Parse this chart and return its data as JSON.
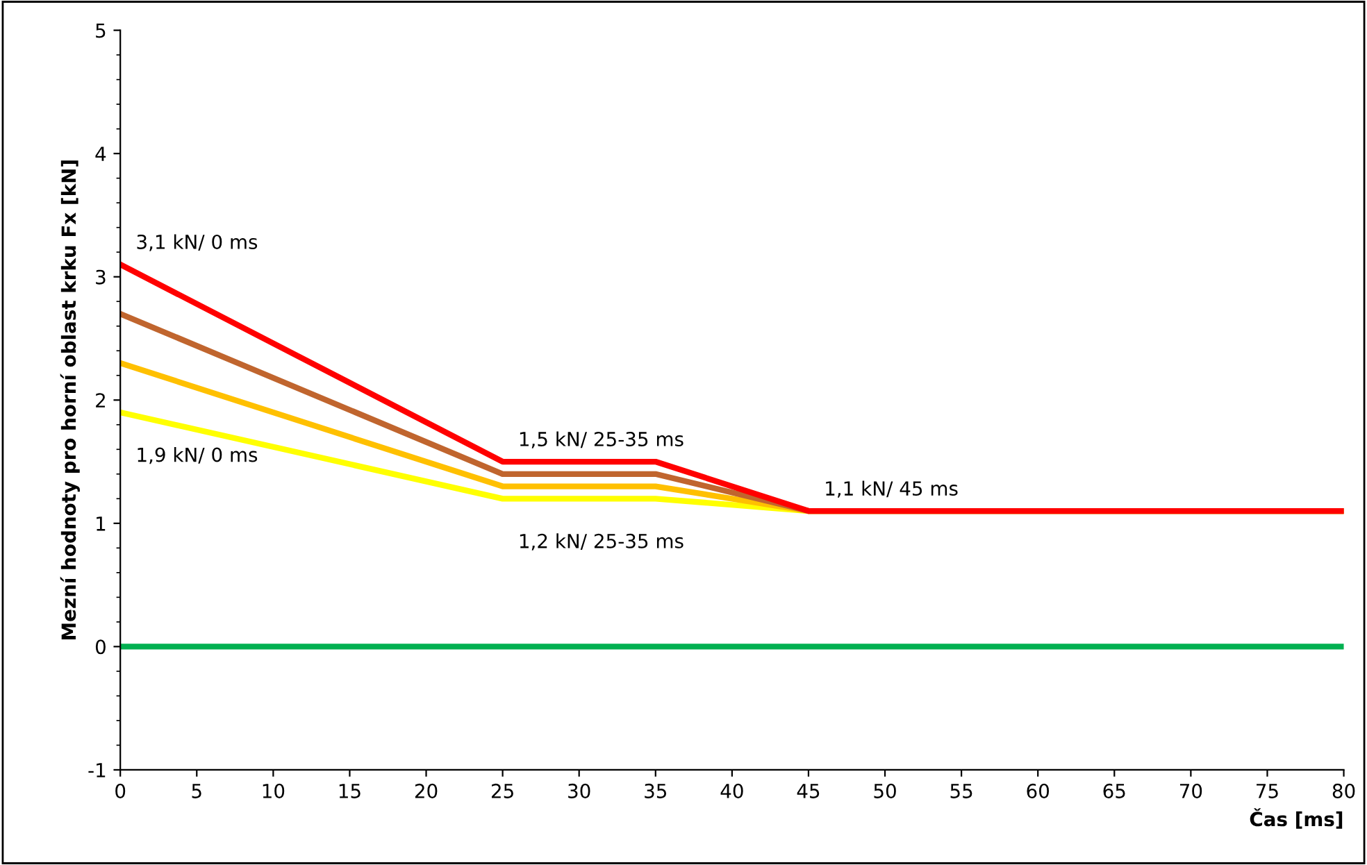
{
  "chart_data": {
    "type": "line",
    "xlabel": "Čas [ms]",
    "ylabel": "Mezní hodnoty pro horní oblast krku Fx [kN]",
    "xlim": [
      0,
      80
    ],
    "ylim": [
      -1,
      5
    ],
    "xticks": [
      0,
      5,
      10,
      15,
      20,
      25,
      30,
      35,
      40,
      45,
      50,
      55,
      60,
      65,
      70,
      75,
      80
    ],
    "yticks": [
      -1,
      0,
      1,
      2,
      3,
      4,
      5
    ],
    "x": [
      0,
      25,
      35,
      45,
      80
    ],
    "series": [
      {
        "color": "#00b050",
        "values": [
          0,
          0,
          0,
          0,
          0
        ]
      },
      {
        "color": "#ffff00",
        "values": [
          1.9,
          1.2,
          1.2,
          1.1,
          1.1
        ]
      },
      {
        "color": "#ffc000",
        "values": [
          2.3,
          1.3,
          1.3,
          1.1,
          1.1
        ]
      },
      {
        "color": "#c0652e",
        "values": [
          2.7,
          1.4,
          1.4,
          1.1,
          1.1
        ]
      },
      {
        "color": "#ff0000",
        "values": [
          3.1,
          1.5,
          1.5,
          1.1,
          1.1
        ]
      }
    ],
    "annotations": [
      {
        "text": "3,1 kN/ 0 ms",
        "x": 0,
        "y": 3.1
      },
      {
        "text": "1,9 kN/ 0 ms",
        "x": 0,
        "y": 1.9
      },
      {
        "text": "1,5 kN/ 25-35 ms",
        "x": 25,
        "y": 1.5
      },
      {
        "text": "1,2 kN/ 25-35 ms",
        "x": 25,
        "y": 1.2
      },
      {
        "text": "1,1 kN/ 45 ms",
        "x": 45,
        "y": 1.1
      }
    ],
    "grid": false,
    "legend": false,
    "marker": "none",
    "line_style": "solid"
  }
}
